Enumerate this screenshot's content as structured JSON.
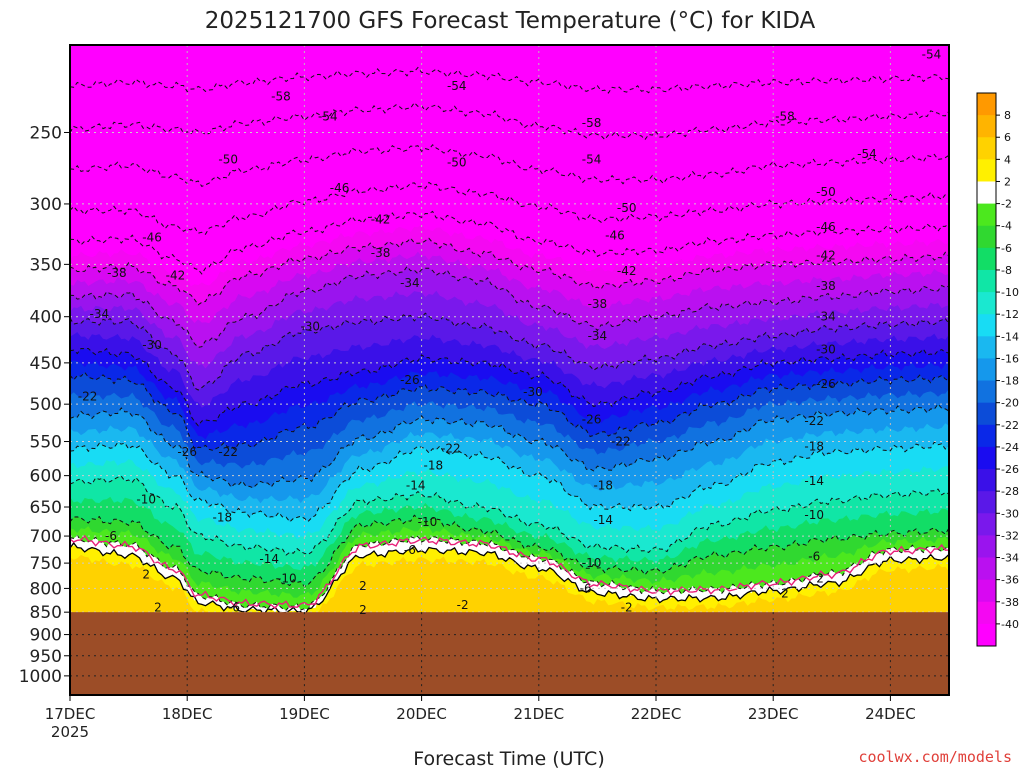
{
  "chart_data": {
    "type": "heatmap",
    "title": "2025121700 GFS Forecast Temperature (°C) for KIDA",
    "xlabel": "Forecast Time (UTC)",
    "ylabel": "",
    "x_ticks": [
      "17DEC",
      "18DEC",
      "19DEC",
      "20DEC",
      "21DEC",
      "22DEC",
      "23DEC",
      "24DEC"
    ],
    "x_tick_sublabel": "2025",
    "x_range_days": [
      0,
      7.5
    ],
    "y_ticks": [
      "250",
      "300",
      "350",
      "400",
      "450",
      "500",
      "550",
      "600",
      "650",
      "700",
      "750",
      "800",
      "850",
      "900",
      "950",
      "1000"
    ],
    "y_unit": "hPa",
    "y_scale": "log-pressure, increasing downward",
    "y_range": [
      200,
      1050
    ],
    "ground_level_hPa": 850,
    "ground_color": "#9c4d27",
    "grid": true,
    "colorbar": {
      "position": "right",
      "labels": [
        "8",
        "6",
        "4",
        "2",
        "-2",
        "-4",
        "-6",
        "-8",
        "-10",
        "-12",
        "-14",
        "-16",
        "-18",
        "-20",
        "-22",
        "-24",
        "-26",
        "-28",
        "-30",
        "-32",
        "-34",
        "-36",
        "-38",
        "-40"
      ],
      "colors": [
        "#ff9900",
        "#ffb400",
        "#ffd200",
        "#fff000",
        "#ffffff",
        "#4ce81e",
        "#30d830",
        "#12dd66",
        "#10e6a6",
        "#1ae8d0",
        "#18dcf4",
        "#1ab8f0",
        "#1598ec",
        "#1172e0",
        "#0c4cd8",
        "#0a28e8",
        "#1a0cf0",
        "#3a10e8",
        "#5a18e8",
        "#7a18ec",
        "#9a14ee",
        "#ba10f0",
        "#d808f2",
        "#f408f2",
        "#ff00ff"
      ]
    },
    "profiles": {
      "x_days": [
        0,
        0.5,
        0.9,
        1.1,
        1.5,
        2.0,
        2.5,
        3.0,
        3.5,
        4.0,
        4.5,
        5.0,
        5.5,
        6.0,
        6.5,
        7.0,
        7.5
      ],
      "levels": [
        {
          "temp": 2,
          "p": [
            720,
            735,
            780,
            830,
            845,
            848,
            735,
            725,
            730,
            760,
            810,
            822,
            820,
            805,
            790,
            745,
            740
          ]
        },
        {
          "temp": -2,
          "p": [
            705,
            715,
            760,
            815,
            835,
            840,
            715,
            705,
            712,
            740,
            790,
            805,
            802,
            790,
            770,
            725,
            722
          ]
        },
        {
          "temp": -6,
          "p": [
            670,
            675,
            720,
            765,
            780,
            790,
            680,
            670,
            690,
            720,
            760,
            765,
            735,
            720,
            705,
            695,
            690
          ]
        },
        {
          "temp": -10,
          "p": [
            610,
            605,
            650,
            700,
            720,
            730,
            640,
            630,
            650,
            680,
            720,
            725,
            680,
            655,
            640,
            630,
            625
          ]
        },
        {
          "temp": -14,
          "p": [
            560,
            555,
            600,
            640,
            660,
            670,
            590,
            560,
            570,
            600,
            650,
            650,
            615,
            580,
            565,
            560,
            555
          ]
        },
        {
          "temp": -18,
          "p": [
            515,
            510,
            555,
            600,
            615,
            605,
            545,
            520,
            525,
            550,
            590,
            575,
            550,
            520,
            512,
            508,
            505
          ]
        },
        {
          "temp": -22,
          "p": [
            465,
            470,
            510,
            560,
            555,
            530,
            495,
            480,
            485,
            500,
            540,
            525,
            500,
            480,
            475,
            470,
            468
          ]
        },
        {
          "temp": -26,
          "p": [
            435,
            440,
            480,
            525,
            500,
            475,
            460,
            445,
            450,
            465,
            500,
            485,
            465,
            450,
            445,
            440,
            438
          ]
        },
        {
          "temp": -30,
          "p": [
            405,
            405,
            440,
            480,
            440,
            415,
            405,
            400,
            410,
            430,
            455,
            445,
            430,
            420,
            412,
            408,
            405
          ]
        },
        {
          "temp": -34,
          "p": [
            380,
            378,
            405,
            430,
            400,
            375,
            360,
            355,
            365,
            390,
            410,
            400,
            390,
            385,
            380,
            375,
            372
          ]
        },
        {
          "temp": -38,
          "p": [
            355,
            352,
            370,
            385,
            360,
            345,
            335,
            330,
            340,
            355,
            370,
            365,
            355,
            350,
            348,
            345,
            343
          ]
        },
        {
          "temp": -42,
          "p": [
            330,
            328,
            345,
            355,
            335,
            322,
            312,
            308,
            315,
            330,
            340,
            338,
            330,
            325,
            322,
            320,
            318
          ]
        },
        {
          "temp": -46,
          "p": [
            305,
            305,
            318,
            322,
            310,
            298,
            290,
            286,
            292,
            302,
            312,
            310,
            305,
            300,
            298,
            296,
            294
          ]
        },
        {
          "temp": -50,
          "p": [
            275,
            272,
            280,
            285,
            275,
            268,
            262,
            260,
            265,
            275,
            282,
            282,
            278,
            272,
            270,
            268,
            266
          ]
        },
        {
          "temp": -54,
          "p": [
            248,
            245,
            248,
            250,
            244,
            240,
            236,
            234,
            238,
            246,
            252,
            252,
            248,
            244,
            242,
            240,
            238
          ]
        },
        {
          "temp": -58,
          "p": [
            222,
            220,
            222,
            224,
            220,
            217,
            215,
            214,
            216,
            220,
            224,
            224,
            222,
            220,
            219,
            218,
            217
          ]
        }
      ]
    },
    "contour_labels": [
      {
        "text": "-54",
        "day": 3.3,
        "p": 222
      },
      {
        "text": "-54",
        "day": 7.35,
        "p": 205
      },
      {
        "text": "-58",
        "day": 1.8,
        "p": 228
      },
      {
        "text": "-54",
        "day": 2.2,
        "p": 240
      },
      {
        "text": "-58",
        "day": 4.45,
        "p": 244
      },
      {
        "text": "-58",
        "day": 6.1,
        "p": 240
      },
      {
        "text": "-50",
        "day": 1.35,
        "p": 268
      },
      {
        "text": "-50",
        "day": 3.3,
        "p": 270
      },
      {
        "text": "-54",
        "day": 4.45,
        "p": 268
      },
      {
        "text": "-54",
        "day": 6.8,
        "p": 264
      },
      {
        "text": "-46",
        "day": 2.3,
        "p": 288
      },
      {
        "text": "-50",
        "day": 4.75,
        "p": 303
      },
      {
        "text": "-50",
        "day": 6.45,
        "p": 291
      },
      {
        "text": "-42",
        "day": 2.65,
        "p": 312
      },
      {
        "text": "-46",
        "day": 0.7,
        "p": 327
      },
      {
        "text": "-46",
        "day": 4.65,
        "p": 325
      },
      {
        "text": "-46",
        "day": 6.45,
        "p": 318
      },
      {
        "text": "-38",
        "day": 2.65,
        "p": 340
      },
      {
        "text": "-42",
        "day": 6.45,
        "p": 342
      },
      {
        "text": "-42",
        "day": 4.75,
        "p": 356
      },
      {
        "text": "-38",
        "day": 0.4,
        "p": 358
      },
      {
        "text": "-42",
        "day": 0.9,
        "p": 360
      },
      {
        "text": "-34",
        "day": 2.9,
        "p": 367
      },
      {
        "text": "-38",
        "day": 6.45,
        "p": 370
      },
      {
        "text": "-38",
        "day": 4.5,
        "p": 387
      },
      {
        "text": "-34",
        "day": 0.25,
        "p": 397
      },
      {
        "text": "-34",
        "day": 6.45,
        "p": 400
      },
      {
        "text": "-30",
        "day": 2.05,
        "p": 410
      },
      {
        "text": "-30",
        "day": 0.7,
        "p": 430
      },
      {
        "text": "-34",
        "day": 4.5,
        "p": 420
      },
      {
        "text": "-30",
        "day": 6.45,
        "p": 435
      },
      {
        "text": "-26",
        "day": 2.9,
        "p": 470
      },
      {
        "text": "-26",
        "day": 6.45,
        "p": 475
      },
      {
        "text": "-30",
        "day": 3.95,
        "p": 485
      },
      {
        "text": "-22",
        "day": 0.15,
        "p": 490
      },
      {
        "text": "-26",
        "day": 4.45,
        "p": 520
      },
      {
        "text": "-22",
        "day": 6.35,
        "p": 522
      },
      {
        "text": "-22",
        "day": 3.25,
        "p": 560
      },
      {
        "text": "-22",
        "day": 4.7,
        "p": 550
      },
      {
        "text": "-18",
        "day": 6.35,
        "p": 557
      },
      {
        "text": "-26",
        "day": 1.0,
        "p": 565
      },
      {
        "text": "-22",
        "day": 1.35,
        "p": 565
      },
      {
        "text": "-18",
        "day": 3.1,
        "p": 585
      },
      {
        "text": "-14",
        "day": 6.35,
        "p": 608
      },
      {
        "text": "-14",
        "day": 2.95,
        "p": 615
      },
      {
        "text": "-18",
        "day": 4.55,
        "p": 615
      },
      {
        "text": "-10",
        "day": 0.65,
        "p": 638
      },
      {
        "text": "-10",
        "day": 6.35,
        "p": 663
      },
      {
        "text": "-18",
        "day": 1.3,
        "p": 668
      },
      {
        "text": "-14",
        "day": 4.55,
        "p": 672
      },
      {
        "text": "-10",
        "day": 3.05,
        "p": 675
      },
      {
        "text": "-6",
        "day": 0.35,
        "p": 700
      },
      {
        "text": "-6",
        "day": 2.9,
        "p": 725
      },
      {
        "text": "-6",
        "day": 6.35,
        "p": 737
      },
      {
        "text": "-14",
        "day": 1.7,
        "p": 742
      },
      {
        "text": "-10",
        "day": 4.45,
        "p": 750
      },
      {
        "text": "2",
        "day": 0.65,
        "p": 772
      },
      {
        "text": "-10",
        "day": 1.85,
        "p": 780
      },
      {
        "text": "2",
        "day": 6.4,
        "p": 780
      },
      {
        "text": "2",
        "day": 2.5,
        "p": 795
      },
      {
        "text": "-6",
        "day": 4.4,
        "p": 800
      },
      {
        "text": "2",
        "day": 6.1,
        "p": 810
      },
      {
        "text": "2",
        "day": 0.75,
        "p": 840
      },
      {
        "text": "-6",
        "day": 1.4,
        "p": 840
      },
      {
        "text": "2",
        "day": 2.5,
        "p": 845
      },
      {
        "text": "-2",
        "day": 3.35,
        "p": 835
      },
      {
        "text": "-2",
        "day": 4.75,
        "p": 840
      }
    ]
  },
  "credit": "coolwx.com/models"
}
